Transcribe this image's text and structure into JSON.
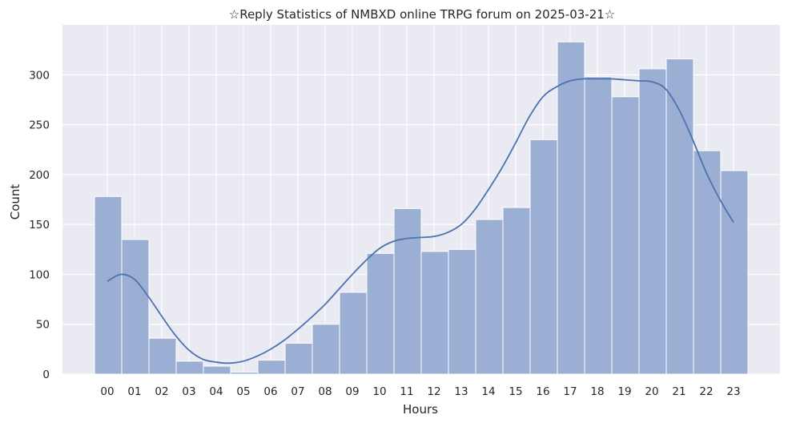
{
  "chart_data": {
    "type": "bar",
    "title": "☆Reply Statistics of NMBXD online TRPG forum on 2025-03-21☆",
    "xlabel": "Hours",
    "ylabel": "Count",
    "categories": [
      "00",
      "01",
      "02",
      "03",
      "04",
      "05",
      "06",
      "07",
      "08",
      "09",
      "10",
      "11",
      "12",
      "13",
      "14",
      "15",
      "16",
      "17",
      "18",
      "19",
      "20",
      "21",
      "22",
      "23"
    ],
    "values": [
      178,
      135,
      36,
      13,
      8,
      2,
      14,
      31,
      50,
      82,
      121,
      166,
      123,
      125,
      155,
      167,
      235,
      333,
      298,
      278,
      306,
      316,
      224,
      204
    ],
    "kde": {
      "x": [
        0,
        0.5,
        1,
        1.5,
        2,
        2.5,
        3,
        3.5,
        4,
        4.5,
        5,
        5.5,
        6,
        6.5,
        7,
        7.5,
        8,
        8.5,
        9,
        9.5,
        10,
        10.5,
        11,
        11.5,
        12,
        12.5,
        13,
        13.5,
        14,
        14.5,
        15,
        15.5,
        16,
        16.5,
        17,
        17.5,
        18,
        18.5,
        19,
        19.5,
        20,
        20.5,
        21,
        21.5,
        22,
        22.5,
        23
      ],
      "y": [
        93,
        100,
        95,
        78,
        58,
        39,
        24,
        15,
        12,
        11,
        13,
        18,
        25,
        34,
        45,
        57,
        70,
        85,
        100,
        114,
        126,
        133,
        136,
        137,
        138,
        142,
        150,
        165,
        185,
        207,
        232,
        258,
        278,
        288,
        294,
        296,
        296,
        296,
        295,
        294,
        293,
        286,
        265,
        235,
        202,
        175,
        152
      ]
    },
    "ylim": [
      0,
      350
    ],
    "yticks": [
      0,
      50,
      100,
      150,
      200,
      250,
      300
    ],
    "grid": true,
    "colors": {
      "background": "#eaeaf2",
      "bar_fill": "#9aafd3",
      "bar_edge": "#ffffff",
      "kde_line": "#4c72b0",
      "grid": "#ffffff"
    }
  }
}
